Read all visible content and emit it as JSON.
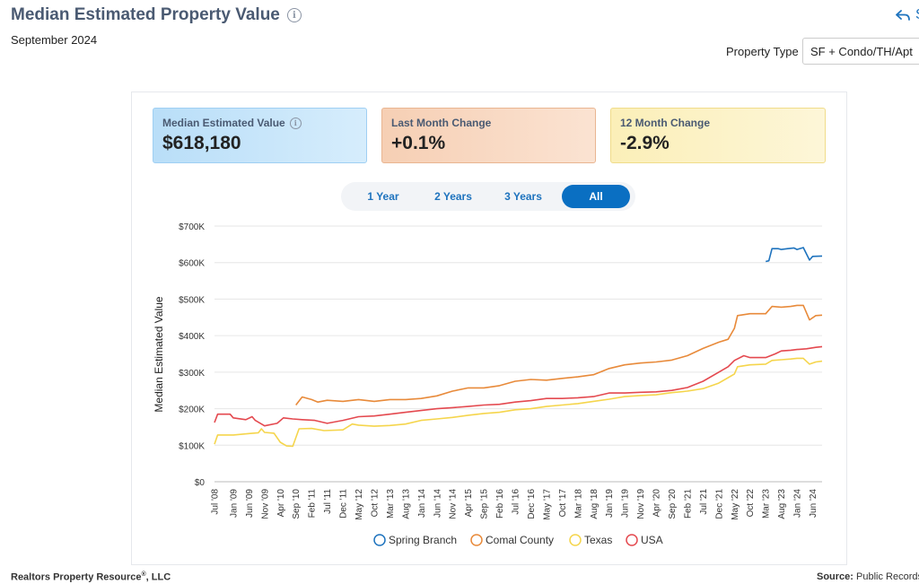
{
  "header": {
    "title": "Median Estimated Property Value",
    "subtitle": "September 2024",
    "share_label": "S",
    "property_type_label": "Property Type",
    "property_type_value": "SF + Condo/TH/Apt",
    "info_icon": "info-icon",
    "share_icon": "share-arrow-icon"
  },
  "cards": [
    {
      "label": "Median Estimated Value",
      "value": "$618,180",
      "color": "#b9def8"
    },
    {
      "label": "Last Month Change",
      "value": "+0.1%",
      "color": "#f6cfb4"
    },
    {
      "label": "12 Month Change",
      "value": "-2.9%",
      "color": "#fbefb8"
    }
  ],
  "tabs": [
    {
      "label": "1 Year",
      "active": false
    },
    {
      "label": "2 Years",
      "active": false
    },
    {
      "label": "3 Years",
      "active": false
    },
    {
      "label": "All",
      "active": true
    }
  ],
  "footer": {
    "left": "Realtors Property Resource",
    "left_mark": "®",
    "left_suffix": ", LLC",
    "right_label": "Source:",
    "right_value": "Public Records a"
  },
  "chart_data": {
    "type": "line",
    "ylabel": "Median Estimated Value",
    "ylim": [
      0,
      700000
    ],
    "yticks": [
      {
        "value": 0,
        "label": "$0"
      },
      {
        "value": 100000,
        "label": "$100K"
      },
      {
        "value": 200000,
        "label": "$200K"
      },
      {
        "value": 300000,
        "label": "$300K"
      },
      {
        "value": 400000,
        "label": "$400K"
      },
      {
        "value": 500000,
        "label": "$500K"
      },
      {
        "value": 600000,
        "label": "$600K"
      },
      {
        "value": 700000,
        "label": "$700K"
      }
    ],
    "xlim": [
      "2008-07",
      "2024-09"
    ],
    "xticks": [
      "Jul '08",
      "Jan '09",
      "Jun '09",
      "Nov '09",
      "Apr '10",
      "Sep '10",
      "Feb '11",
      "Jul '11",
      "Dec '11",
      "May '12",
      "Oct '12",
      "Mar '13",
      "Aug '13",
      "Jan '14",
      "Jun '14",
      "Nov '14",
      "Apr '15",
      "Sep '15",
      "Feb '16",
      "Jul '16",
      "Dec '16",
      "May '17",
      "Oct '17",
      "Mar '18",
      "Aug '18",
      "Jan '19",
      "Jun '19",
      "Nov '19",
      "Apr '20",
      "Sep '20",
      "Feb '21",
      "Jul '21",
      "Dec '21",
      "May '22",
      "Oct '22",
      "Mar '23",
      "Aug '23",
      "Jan '24",
      "Jun '24"
    ],
    "grid": true,
    "legend_position": "bottom",
    "series": [
      {
        "name": "Spring Branch",
        "color": "#1e73be",
        "points": [
          [
            "2023-03",
            603000
          ],
          [
            "2023-04",
            605000
          ],
          [
            "2023-05",
            638000
          ],
          [
            "2023-07",
            638000
          ],
          [
            "2023-08",
            636000
          ],
          [
            "2023-10",
            638000
          ],
          [
            "2023-12",
            640000
          ],
          [
            "2024-01",
            636000
          ],
          [
            "2024-03",
            641000
          ],
          [
            "2024-05",
            607000
          ],
          [
            "2024-06",
            617000
          ],
          [
            "2024-09",
            618000
          ]
        ]
      },
      {
        "name": "Comal County",
        "color": "#e88a3a",
        "points": [
          [
            "2010-09",
            210000
          ],
          [
            "2010-11",
            232000
          ],
          [
            "2011-02",
            225000
          ],
          [
            "2011-04",
            218000
          ],
          [
            "2011-07",
            223000
          ],
          [
            "2011-12",
            220000
          ],
          [
            "2012-05",
            225000
          ],
          [
            "2012-10",
            220000
          ],
          [
            "2013-03",
            225000
          ],
          [
            "2013-08",
            225000
          ],
          [
            "2014-01",
            228000
          ],
          [
            "2014-06",
            235000
          ],
          [
            "2014-11",
            248000
          ],
          [
            "2015-04",
            257000
          ],
          [
            "2015-09",
            257000
          ],
          [
            "2016-02",
            263000
          ],
          [
            "2016-07",
            275000
          ],
          [
            "2016-12",
            280000
          ],
          [
            "2017-05",
            278000
          ],
          [
            "2017-10",
            283000
          ],
          [
            "2018-03",
            287000
          ],
          [
            "2018-08",
            293000
          ],
          [
            "2019-01",
            310000
          ],
          [
            "2019-06",
            320000
          ],
          [
            "2019-11",
            325000
          ],
          [
            "2020-04",
            328000
          ],
          [
            "2020-09",
            333000
          ],
          [
            "2021-02",
            345000
          ],
          [
            "2021-07",
            365000
          ],
          [
            "2021-12",
            382000
          ],
          [
            "2022-03",
            390000
          ],
          [
            "2022-05",
            420000
          ],
          [
            "2022-06",
            455000
          ],
          [
            "2022-10",
            460000
          ],
          [
            "2023-03",
            460000
          ],
          [
            "2023-05",
            480000
          ],
          [
            "2023-08",
            478000
          ],
          [
            "2023-11",
            480000
          ],
          [
            "2024-01",
            483000
          ],
          [
            "2024-03",
            483000
          ],
          [
            "2024-05",
            443000
          ],
          [
            "2024-07",
            455000
          ],
          [
            "2024-09",
            456000
          ]
        ]
      },
      {
        "name": "Texas",
        "color": "#f5d54c",
        "points": [
          [
            "2008-07",
            103000
          ],
          [
            "2008-08",
            128000
          ],
          [
            "2009-01",
            128000
          ],
          [
            "2009-06",
            132000
          ],
          [
            "2009-09",
            134000
          ],
          [
            "2009-10",
            145000
          ],
          [
            "2009-11",
            135000
          ],
          [
            "2010-02",
            133000
          ],
          [
            "2010-04",
            108000
          ],
          [
            "2010-06",
            98000
          ],
          [
            "2010-08",
            97000
          ],
          [
            "2010-10",
            145000
          ],
          [
            "2011-02",
            146000
          ],
          [
            "2011-06",
            140000
          ],
          [
            "2011-12",
            142000
          ],
          [
            "2012-03",
            158000
          ],
          [
            "2012-05",
            155000
          ],
          [
            "2012-10",
            152000
          ],
          [
            "2013-03",
            154000
          ],
          [
            "2013-08",
            158000
          ],
          [
            "2014-01",
            168000
          ],
          [
            "2014-06",
            172000
          ],
          [
            "2014-11",
            176000
          ],
          [
            "2015-04",
            182000
          ],
          [
            "2015-09",
            187000
          ],
          [
            "2016-02",
            190000
          ],
          [
            "2016-07",
            197000
          ],
          [
            "2016-12",
            200000
          ],
          [
            "2017-05",
            206000
          ],
          [
            "2017-10",
            210000
          ],
          [
            "2018-03",
            214000
          ],
          [
            "2018-08",
            220000
          ],
          [
            "2019-01",
            226000
          ],
          [
            "2019-06",
            233000
          ],
          [
            "2019-11",
            236000
          ],
          [
            "2020-04",
            238000
          ],
          [
            "2020-09",
            244000
          ],
          [
            "2021-02",
            248000
          ],
          [
            "2021-07",
            255000
          ],
          [
            "2021-12",
            270000
          ],
          [
            "2022-03",
            285000
          ],
          [
            "2022-05",
            295000
          ],
          [
            "2022-06",
            315000
          ],
          [
            "2022-10",
            320000
          ],
          [
            "2023-03",
            322000
          ],
          [
            "2023-05",
            332000
          ],
          [
            "2023-08",
            334000
          ],
          [
            "2023-11",
            336000
          ],
          [
            "2024-01",
            338000
          ],
          [
            "2024-03",
            338000
          ],
          [
            "2024-05",
            322000
          ],
          [
            "2024-07",
            328000
          ],
          [
            "2024-09",
            330000
          ]
        ]
      },
      {
        "name": "USA",
        "color": "#e4494f",
        "points": [
          [
            "2008-07",
            162000
          ],
          [
            "2008-08",
            185000
          ],
          [
            "2008-12",
            185000
          ],
          [
            "2009-01",
            175000
          ],
          [
            "2009-05",
            170000
          ],
          [
            "2009-07",
            178000
          ],
          [
            "2009-08",
            168000
          ],
          [
            "2009-11",
            153000
          ],
          [
            "2010-03",
            160000
          ],
          [
            "2010-05",
            175000
          ],
          [
            "2010-08",
            172000
          ],
          [
            "2010-11",
            170000
          ],
          [
            "2011-03",
            168000
          ],
          [
            "2011-07",
            160000
          ],
          [
            "2011-12",
            168000
          ],
          [
            "2012-05",
            178000
          ],
          [
            "2012-10",
            180000
          ],
          [
            "2013-03",
            185000
          ],
          [
            "2013-08",
            190000
          ],
          [
            "2014-01",
            195000
          ],
          [
            "2014-06",
            200000
          ],
          [
            "2014-11",
            203000
          ],
          [
            "2015-04",
            206000
          ],
          [
            "2015-09",
            210000
          ],
          [
            "2016-02",
            212000
          ],
          [
            "2016-07",
            218000
          ],
          [
            "2016-12",
            222000
          ],
          [
            "2017-05",
            228000
          ],
          [
            "2017-10",
            228000
          ],
          [
            "2018-03",
            230000
          ],
          [
            "2018-08",
            233000
          ],
          [
            "2019-01",
            243000
          ],
          [
            "2019-06",
            243000
          ],
          [
            "2019-11",
            245000
          ],
          [
            "2020-04",
            246000
          ],
          [
            "2020-09",
            250000
          ],
          [
            "2021-02",
            258000
          ],
          [
            "2021-07",
            275000
          ],
          [
            "2021-12",
            300000
          ],
          [
            "2022-03",
            315000
          ],
          [
            "2022-05",
            332000
          ],
          [
            "2022-08",
            345000
          ],
          [
            "2022-10",
            340000
          ],
          [
            "2023-03",
            340000
          ],
          [
            "2023-06",
            350000
          ],
          [
            "2023-08",
            358000
          ],
          [
            "2023-11",
            360000
          ],
          [
            "2024-01",
            362000
          ],
          [
            "2024-04",
            364000
          ],
          [
            "2024-07",
            368000
          ],
          [
            "2024-09",
            370000
          ]
        ]
      }
    ]
  }
}
